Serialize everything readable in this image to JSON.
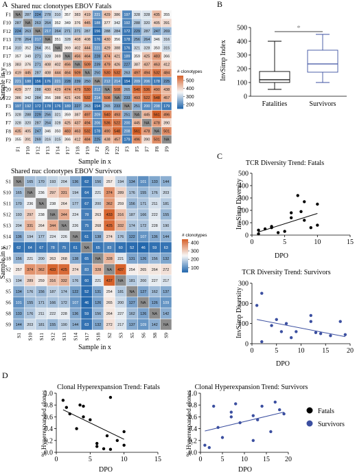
{
  "panels": {
    "A": "A",
    "B": "B",
    "C": "C",
    "D": "D"
  },
  "chart_data": [
    {
      "id": "A1",
      "type": "heatmap",
      "title": "Shared nuc clonotypes EBOV Fatals",
      "xlabel": "Sample in x",
      "ylabel": "Sample in y",
      "rows": [
        "F1",
        "F10",
        "F12",
        "F13",
        "F14",
        "F17",
        "F18",
        "F19",
        "F2",
        "F20",
        "F22",
        "F3",
        "F5",
        "F7",
        "F8",
        "F9"
      ],
      "cols": [
        "F1",
        "F10",
        "F12",
        "F13",
        "F14",
        "F17",
        "F18",
        "F19",
        "F2",
        "F20",
        "F22",
        "F3",
        "F5",
        "F7",
        "F8",
        "F9"
      ],
      "values": [
        [
          null,
          287,
          224,
          278,
          310,
          357,
          383,
          419,
          221,
          429,
          386,
          197,
          328,
          328,
          435,
          355
        ],
        [
          287,
          null,
          263,
          264,
          352,
          349,
          376,
          445,
          188,
          377,
          342,
          192,
          288,
          320,
          405,
          391
        ],
        [
          224,
          263,
          null,
          217,
          264,
          271,
          271,
          287,
          156,
          288,
          284,
          172,
          229,
          287,
          247,
          269
        ],
        [
          278,
          264,
          217,
          null,
          351,
          328,
          408,
          408,
          176,
          430,
          356,
          178,
          256,
          264,
          346,
          316
        ],
        [
          310,
          352,
          264,
          351,
          null,
          369,
          402,
          444,
          221,
          429,
          388,
          176,
          321,
          328,
          350,
          315
        ],
        [
          357,
          349,
          271,
          328,
          369,
          null,
          456,
          464,
          228,
          474,
          421,
          189,
          359,
          425,
          483,
          366
        ],
        [
          383,
          376,
          271,
          408,
          402,
          456,
          null,
          509,
          239,
          479,
          426,
          227,
          387,
          437,
          463,
          412
        ],
        [
          419,
          445,
          287,
          408,
          444,
          464,
          509,
          null,
          250,
          530,
          532,
          263,
          497,
          494,
          532,
          484
        ],
        [
          221,
          188,
          156,
          176,
          221,
          228,
          239,
          250,
          null,
          212,
          214,
          154,
          209,
          206,
          178,
          225
        ],
        [
          429,
          377,
          288,
          430,
          429,
          474,
          479,
          530,
          212,
          null,
          508,
          265,
          540,
          536,
          490,
          438
        ],
        [
          386,
          342,
          284,
          356,
          388,
          421,
          426,
          532,
          214,
          508,
          null,
          233,
          493,
          522,
          548,
          457
        ],
        [
          197,
          192,
          172,
          178,
          176,
          189,
          227,
          263,
          154,
          265,
          233,
          null,
          251,
          200,
          208,
          179
        ],
        [
          328,
          288,
          229,
          256,
          321,
          359,
          387,
          497,
          209,
          540,
          493,
          251,
          null,
          445,
          561,
          496
        ],
        [
          328,
          320,
          287,
          264,
          328,
          425,
          437,
          494,
          206,
          536,
          522,
          200,
          445,
          null,
          478,
          390
        ],
        [
          435,
          405,
          247,
          346,
          350,
          483,
          463,
          532,
          178,
          490,
          548,
          208,
          561,
          478,
          null,
          501
        ],
        [
          355,
          391,
          269,
          316,
          315,
          366,
          412,
          484,
          225,
          438,
          457,
          179,
          496,
          390,
          501,
          null
        ]
      ],
      "colorbar": {
        "label": "# clonotypes",
        "ticks": [
          200,
          300,
          400,
          500
        ],
        "range": [
          150,
          560
        ]
      },
      "missing_label": "NA"
    },
    {
      "id": "A2",
      "type": "heatmap",
      "title": "Shared nuc clonotypes EBOV Survivors",
      "xlabel": "Sample in x",
      "ylabel": "Sample in y",
      "rows": [
        "S1",
        "S10",
        "S11",
        "S12",
        "S13",
        "S14",
        "S17",
        "S18",
        "S2",
        "S3",
        "S5",
        "S6",
        "S8",
        "S9"
      ],
      "cols": [
        "S1",
        "S10",
        "S11",
        "S12",
        "S13",
        "S14",
        "S17",
        "S18",
        "S2",
        "S3",
        "S5",
        "S6",
        "S8",
        "S9"
      ],
      "values": [
        [
          null,
          165,
          170,
          193,
          204,
          136,
          62,
          156,
          257,
          194,
          134,
          101,
          133,
          144
        ],
        [
          165,
          null,
          236,
          297,
          331,
          194,
          64,
          221,
          374,
          289,
          176,
          155,
          176,
          203
        ],
        [
          170,
          236,
          null,
          238,
          264,
          177,
          67,
          200,
          362,
          259,
          156,
          171,
          211,
          181
        ],
        [
          193,
          297,
          238,
          null,
          344,
          224,
          78,
          263,
          433,
          316,
          187,
          166,
          222,
          155
        ],
        [
          204,
          331,
          264,
          344,
          null,
          226,
          75,
          268,
          425,
          332,
          174,
          172,
          228,
          190
        ],
        [
          136,
          194,
          177,
          224,
          226,
          null,
          61,
          138,
          274,
          176,
          122,
          107,
          136,
          144
        ],
        [
          62,
          64,
          67,
          78,
          75,
          61,
          null,
          65,
          83,
          60,
          52,
          46,
          59,
          63
        ],
        [
          156,
          221,
          200,
          263,
          268,
          138,
          65,
          null,
          328,
          221,
          131,
          126,
          156,
          132
        ],
        [
          257,
          374,
          362,
          433,
          425,
          274,
          83,
          328,
          null,
          437,
          254,
          265,
          264,
          272
        ],
        [
          194,
          289,
          259,
          316,
          332,
          176,
          60,
          221,
          437,
          null,
          181,
          200,
          227,
          217
        ],
        [
          134,
          176,
          156,
          187,
          174,
          122,
          52,
          131,
          254,
          181,
          null,
          127,
          162,
          137
        ],
        [
          101,
          155,
          171,
          166,
          172,
          107,
          46,
          126,
          265,
          200,
          127,
          null,
          126,
          109
        ],
        [
          133,
          176,
          211,
          222,
          228,
          136,
          59,
          156,
          264,
          227,
          162,
          126,
          null,
          142
        ],
        [
          144,
          203,
          181,
          155,
          190,
          144,
          63,
          132,
          272,
          217,
          137,
          109,
          142,
          null
        ]
      ],
      "colorbar": {
        "label": "# clonotypes",
        "ticks": [
          100,
          200,
          300,
          400
        ],
        "range": [
          45,
          440
        ]
      },
      "missing_label": "NA"
    },
    {
      "id": "B",
      "type": "box",
      "ylabel": "InvSimp Index",
      "categories": [
        "Fatalities",
        "Survivors"
      ],
      "boxes": [
        {
          "min": 50,
          "q1": 100,
          "median": 120,
          "q3": 180,
          "max": 400
        },
        {
          "min": 100,
          "q1": 175,
          "median": 235,
          "q3": 335,
          "max": 450
        }
      ],
      "ylim": [
        0,
        500
      ],
      "yticks": [
        0,
        100,
        200,
        300,
        400,
        500
      ],
      "significance": "*"
    },
    {
      "id": "C1",
      "type": "scatter",
      "title": "TCR Diversity Trend: Fatals",
      "xlabel": "DPO",
      "ylabel": "InvSimp Diversity",
      "xlim": [
        0,
        15
      ],
      "ylim": [
        0,
        500
      ],
      "xticks": [
        0,
        5,
        10,
        15
      ],
      "yticks": [
        0,
        100,
        200,
        300,
        400,
        500
      ],
      "x": [
        1,
        1,
        2,
        3,
        3,
        4,
        5,
        6,
        6,
        7,
        7.5,
        8,
        8,
        9,
        10,
        10
      ],
      "y": [
        10,
        40,
        50,
        60,
        70,
        20,
        30,
        180,
        140,
        320,
        190,
        270,
        120,
        60,
        250,
        80
      ],
      "fit": {
        "x": [
          1,
          10
        ],
        "y": [
          25,
          175
        ]
      },
      "color": "#000000"
    },
    {
      "id": "C2",
      "type": "scatter",
      "title": "TCR Diversity Trend: Survivors",
      "xlabel": "DPO",
      "ylabel": "InvSimp Diversity",
      "xlim": [
        0,
        20
      ],
      "ylim": [
        0,
        300
      ],
      "xticks": [
        0,
        5,
        10,
        15,
        20
      ],
      "yticks": [
        0,
        100,
        200,
        300
      ],
      "x": [
        1,
        2,
        2,
        4,
        5,
        6,
        7,
        8,
        9,
        12,
        12,
        13,
        14,
        16,
        18,
        19
      ],
      "y": [
        190,
        250,
        10,
        90,
        120,
        60,
        100,
        30,
        60,
        140,
        110,
        55,
        50,
        40,
        110,
        45
      ],
      "fit": {
        "x": [
          1,
          19
        ],
        "y": [
          120,
          35
        ]
      },
      "color": "#3b4fa0"
    },
    {
      "id": "D1",
      "type": "scatter",
      "title": "Clonal Hyperexpansion Trend: Fatals",
      "xlabel": "DPO",
      "ylabel": "% Hyperexpanded clones",
      "xlim": [
        0,
        15
      ],
      "ylim": [
        0,
        1.0
      ],
      "xticks": [
        0,
        5,
        10,
        15
      ],
      "yticks": [
        0.0,
        0.2,
        0.4,
        0.6,
        0.8,
        1.0
      ],
      "x": [
        1,
        1.5,
        2,
        3,
        3.5,
        4,
        4,
        5,
        6,
        6,
        7,
        7.5,
        8,
        8,
        9,
        10,
        10
      ],
      "y": [
        0.88,
        0.76,
        0.65,
        0.4,
        0.8,
        0.78,
        0.6,
        0.55,
        0.15,
        0.1,
        0.06,
        0.28,
        0.93,
        0.05,
        0.2,
        0.35,
        0.12
      ],
      "fit": {
        "x": [
          1,
          10
        ],
        "y": [
          0.72,
          0.22
        ]
      },
      "color": "#000000"
    },
    {
      "id": "D2",
      "type": "scatter",
      "title": "Clonal Hyperexpansion Trend: Survivors",
      "xlabel": "DPO",
      "ylabel": "% Hyperexpanded clones",
      "xlim": [
        0,
        20
      ],
      "ylim": [
        0,
        1.0
      ],
      "xticks": [
        0,
        5,
        10,
        15,
        20
      ],
      "yticks": [
        0.0,
        0.2,
        0.4,
        0.6,
        0.8,
        1.0
      ],
      "x": [
        1,
        2,
        3,
        4,
        5,
        7,
        7,
        8,
        9,
        12,
        12,
        13,
        14,
        16,
        17,
        18,
        19
      ],
      "y": [
        0.12,
        0.08,
        0.78,
        0.42,
        0.25,
        0.6,
        0.68,
        0.82,
        0.5,
        0.2,
        0.62,
        0.55,
        0.78,
        0.35,
        0.85,
        0.72,
        0.65
      ],
      "fit": {
        "x": [
          1,
          19
        ],
        "y": [
          0.36,
          0.68
        ]
      },
      "color": "#3b4fa0"
    }
  ],
  "legend_D": [
    {
      "label": "Fatals",
      "color": "#000000"
    },
    {
      "label": "Survivors",
      "color": "#3b4fa0"
    }
  ]
}
